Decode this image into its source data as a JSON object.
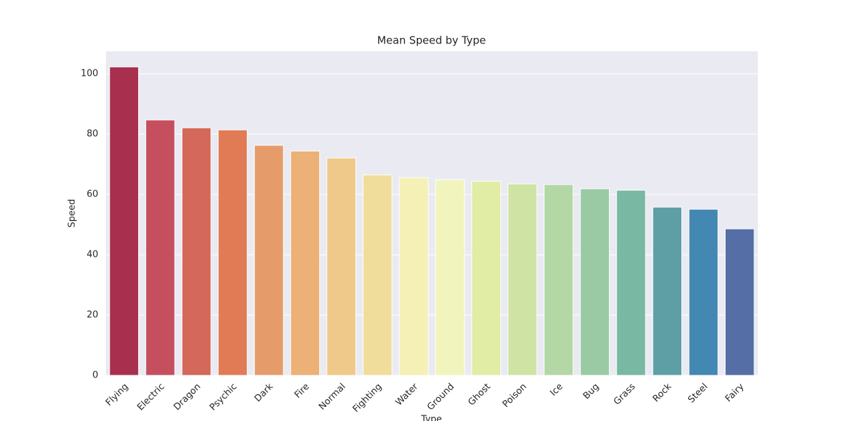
{
  "chart_data": {
    "type": "bar",
    "title": "Mean Speed by Type",
    "x_label": "Type",
    "y_label": "Speed",
    "categories": [
      "Flying",
      "Electric",
      "Dragon",
      "Psychic",
      "Dark",
      "Fire",
      "Normal",
      "Fighting",
      "Water",
      "Ground",
      "Ghost",
      "Poison",
      "Ice",
      "Bug",
      "Grass",
      "Rock",
      "Steel",
      "Fairy"
    ],
    "values": [
      102.3,
      84.7,
      82.1,
      81.4,
      76.3,
      74.4,
      72.1,
      66.5,
      65.6,
      64.9,
      64.4,
      63.5,
      63.3,
      61.9,
      61.4,
      55.8,
      55.1,
      48.6
    ],
    "colors": [
      "#a8304e",
      "#c54f5f",
      "#d4685b",
      "#e07b56",
      "#e69b6b",
      "#ebb177",
      "#efc98a",
      "#f0dd9b",
      "#f5f0b5",
      "#f1f4bd",
      "#e1eca4",
      "#cfe3a5",
      "#b3d8a5",
      "#9acaa4",
      "#79b8a2",
      "#5e9fa6",
      "#4387b3",
      "#566ea6"
    ],
    "ylim": [
      0,
      107.5
    ],
    "yticks": [
      0,
      20,
      40,
      60,
      80,
      100
    ],
    "grid": true
  }
}
